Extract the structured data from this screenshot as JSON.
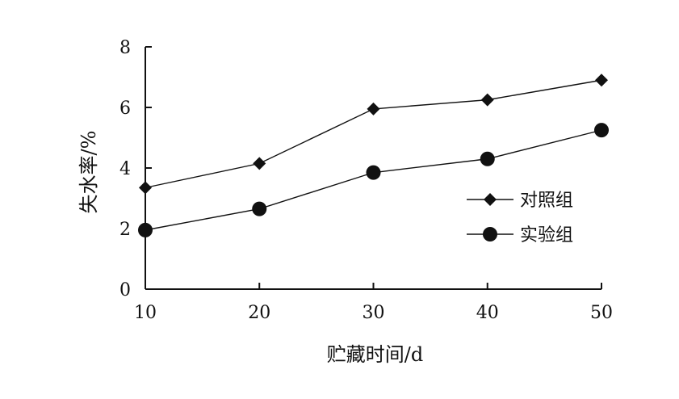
{
  "chart_data": {
    "type": "line",
    "title": "",
    "xlabel": "贮藏时间/d",
    "ylabel": "失水率/%",
    "x": [
      10,
      20,
      30,
      40,
      50
    ],
    "xlim": [
      10,
      50
    ],
    "ylim": [
      0,
      8
    ],
    "x_ticks": [
      "10",
      "20",
      "30",
      "40",
      "50"
    ],
    "y_ticks": [
      "0",
      "2",
      "4",
      "6",
      "8"
    ],
    "grid": false,
    "legend_position": "right",
    "series": [
      {
        "name": "对照组",
        "marker": "diamond",
        "color": "#111111",
        "values": [
          3.35,
          4.15,
          5.95,
          6.25,
          6.9
        ]
      },
      {
        "name": "实验组",
        "marker": "circle",
        "color": "#111111",
        "values": [
          1.95,
          2.65,
          3.85,
          4.3,
          5.25
        ]
      }
    ]
  }
}
